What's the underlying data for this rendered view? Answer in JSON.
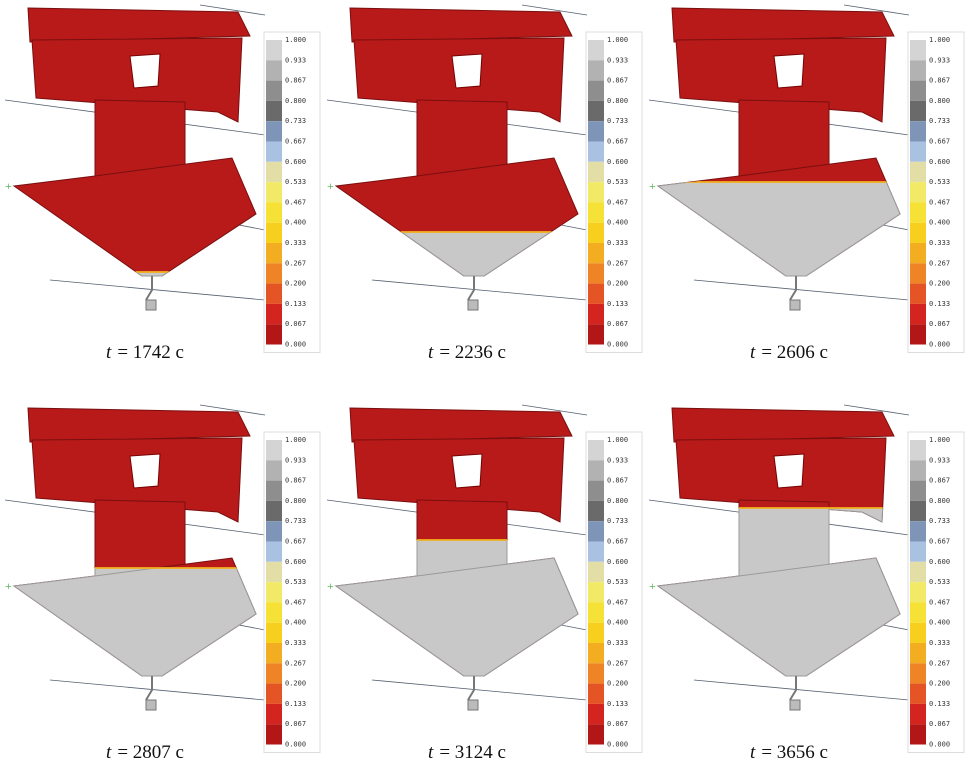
{
  "colorbar": {
    "labels": [
      "1.000",
      "0.933",
      "0.867",
      "0.800",
      "0.733",
      "0.667",
      "0.600",
      "0.533",
      "0.467",
      "0.400",
      "0.333",
      "0.267",
      "0.200",
      "0.133",
      "0.067",
      "0.000"
    ],
    "colors": [
      "#d4d4d4",
      "#b2b2b2",
      "#8e8e8e",
      "#6a6a6a",
      "#7f95b8",
      "#a9c2e2",
      "#e2dea6",
      "#f2ea66",
      "#f6e236",
      "#f7cf1e",
      "#f3ad20",
      "#ee8426",
      "#e55424",
      "#d42420",
      "#b21616"
    ]
  },
  "panels": [
    {
      "variable": "t",
      "text": "= 1742 c"
    },
    {
      "variable": "t",
      "text": "= 2236 c"
    },
    {
      "variable": "t",
      "text": "= 2606 c"
    },
    {
      "variable": "t",
      "text": "= 2807 c"
    },
    {
      "variable": "t",
      "text": "= 3124 c"
    },
    {
      "variable": "t",
      "text": "= 3656 c"
    }
  ]
}
